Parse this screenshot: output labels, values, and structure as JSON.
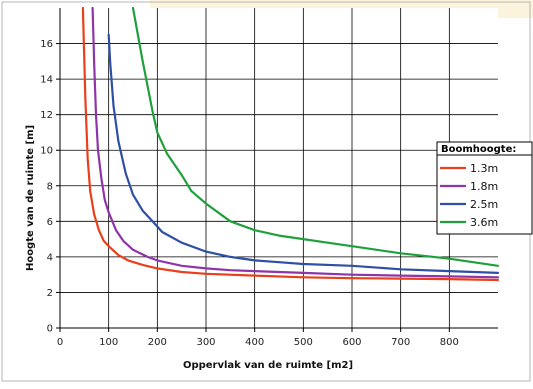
{
  "colors": {
    "page_background": "#ffffff",
    "banner": "#fbf3dc",
    "plot_background": "#ffffff",
    "grid": "#000000"
  },
  "chart_data": {
    "type": "line",
    "title": "",
    "xlabel": "Oppervlak van de ruimte [m2]",
    "ylabel": "Hoogte van de ruimte [m]",
    "xlim": [
      0,
      900
    ],
    "ylim": [
      0,
      18
    ],
    "xticks": [
      0,
      100,
      200,
      300,
      400,
      500,
      600,
      700,
      800
    ],
    "yticks": [
      0,
      2,
      4,
      6,
      8,
      10,
      12,
      14,
      16
    ],
    "grid": true,
    "legend": {
      "title": "Boomhoogte:",
      "position": "right"
    },
    "series": [
      {
        "name": "1.3m",
        "color": "#e8401c",
        "points": [
          [
            47,
            18
          ],
          [
            52,
            13
          ],
          [
            57,
            9.5
          ],
          [
            62,
            7.7
          ],
          [
            70,
            6.4
          ],
          [
            80,
            5.5
          ],
          [
            90,
            4.9
          ],
          [
            100,
            4.6
          ],
          [
            120,
            4.1
          ],
          [
            140,
            3.8
          ],
          [
            170,
            3.55
          ],
          [
            200,
            3.35
          ],
          [
            250,
            3.15
          ],
          [
            300,
            3.05
          ],
          [
            400,
            2.95
          ],
          [
            500,
            2.85
          ],
          [
            600,
            2.8
          ],
          [
            700,
            2.78
          ],
          [
            800,
            2.75
          ],
          [
            900,
            2.7
          ]
        ]
      },
      {
        "name": "1.8m",
        "color": "#8e35a8",
        "points": [
          [
            67,
            18
          ],
          [
            70,
            15
          ],
          [
            74,
            12
          ],
          [
            78,
            10
          ],
          [
            85,
            8.4
          ],
          [
            92,
            7.2
          ],
          [
            100,
            6.5
          ],
          [
            115,
            5.5
          ],
          [
            130,
            4.9
          ],
          [
            150,
            4.4
          ],
          [
            180,
            4.0
          ],
          [
            200,
            3.8
          ],
          [
            250,
            3.5
          ],
          [
            300,
            3.35
          ],
          [
            350,
            3.25
          ],
          [
            400,
            3.2
          ],
          [
            500,
            3.1
          ],
          [
            600,
            3.0
          ],
          [
            700,
            2.95
          ],
          [
            800,
            2.9
          ],
          [
            900,
            2.85
          ]
        ]
      },
      {
        "name": "2.5m",
        "color": "#2e4fa3",
        "points": [
          [
            100,
            16.5
          ],
          [
            103,
            15
          ],
          [
            110,
            12.5
          ],
          [
            120,
            10.5
          ],
          [
            135,
            8.7
          ],
          [
            150,
            7.5
          ],
          [
            170,
            6.6
          ],
          [
            190,
            6.0
          ],
          [
            210,
            5.4
          ],
          [
            250,
            4.8
          ],
          [
            300,
            4.3
          ],
          [
            350,
            4.0
          ],
          [
            400,
            3.8
          ],
          [
            450,
            3.7
          ],
          [
            500,
            3.6
          ],
          [
            600,
            3.5
          ],
          [
            700,
            3.3
          ],
          [
            800,
            3.2
          ],
          [
            900,
            3.1
          ]
        ]
      },
      {
        "name": "3.6m",
        "color": "#20a03c",
        "points": [
          [
            150,
            18
          ],
          [
            170,
            15
          ],
          [
            190,
            12.2
          ],
          [
            200,
            11
          ],
          [
            220,
            9.8
          ],
          [
            250,
            8.6
          ],
          [
            270,
            7.7
          ],
          [
            300,
            7.0
          ],
          [
            350,
            6.0
          ],
          [
            400,
            5.5
          ],
          [
            450,
            5.2
          ],
          [
            500,
            5.0
          ],
          [
            550,
            4.8
          ],
          [
            600,
            4.6
          ],
          [
            700,
            4.2
          ],
          [
            800,
            3.9
          ],
          [
            900,
            3.5
          ]
        ]
      }
    ]
  }
}
